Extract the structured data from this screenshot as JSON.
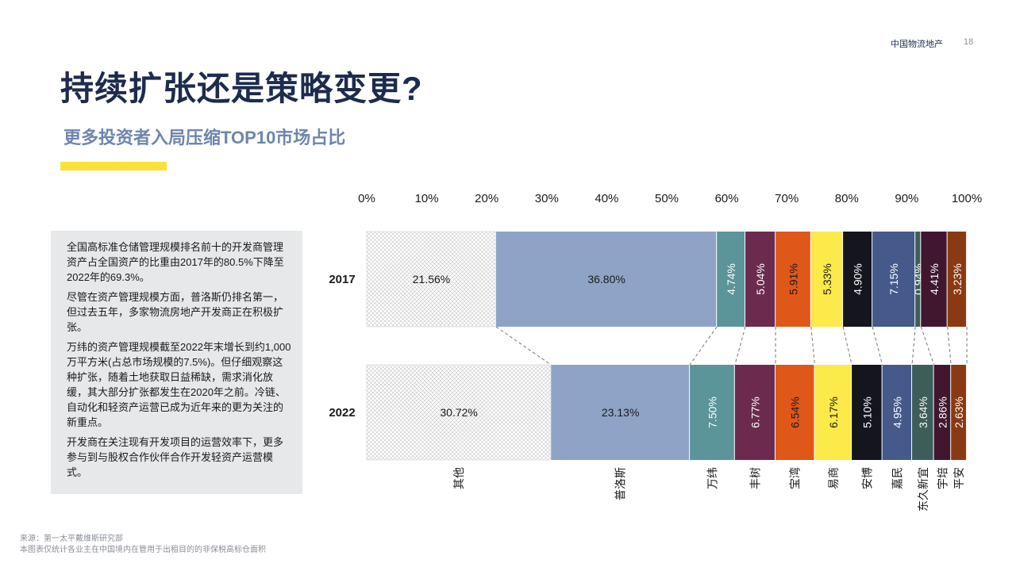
{
  "header": {
    "brand": "中国物流地产",
    "page_number": "18"
  },
  "title": "持续扩张还是策略变更?",
  "subtitle": "更多投资者入局压缩TOP10市场占比",
  "colors": {
    "title": "#1d2b4f",
    "subtitle": "#6d86ad",
    "accent": "#f7e23a",
    "textbox_bg": "#e6e8ea"
  },
  "textbox": {
    "paragraphs": [
      "全国高标准仓储管理规模排名前十的开发商管理资产占全国资产的比重由2017年的80.5%下降至2022年的69.3%。",
      "尽管在资产管理规模方面，普洛斯仍排名第一，但过去五年，多家物流房地产开发商正在积极扩张。",
      "万纬的资产管理规模截至2022年末增长到约1,000万平方米(占总市场规模的7.5%)。但仔细观察这种扩张，随着土地获取日益稀缺，需求消化放缓，其大部分扩张都发生在2020年之前。冷链、自动化和轻资产运营已成为近年来的更为关注的新重点。",
      "开发商在关注现有开发项目的运营效率下，更多参与到与股权合作伙伴合作开发轻资产运营模式。"
    ]
  },
  "source": {
    "line1": "来源：第一太平戴维斯研究部",
    "line2": "本图表仅统计各业主在中国境内在管用于出租目的的非保税高标仓面积"
  },
  "chart_data": {
    "type": "bar",
    "orientation": "horizontal",
    "stacked": "percent",
    "categories": [
      "2017",
      "2022"
    ],
    "xlim": [
      0,
      100
    ],
    "x_ticks": [
      "0%",
      "10%",
      "20%",
      "30%",
      "40%",
      "50%",
      "60%",
      "70%",
      "80%",
      "90%",
      "100%"
    ],
    "series": [
      {
        "name": "其他",
        "values": [
          21.56,
          30.72
        ],
        "labels": [
          "21.56%",
          "30.72%"
        ],
        "color": "#ffffff",
        "pattern": "crosshatch",
        "text_color": "#1a1a1a",
        "vertical": false
      },
      {
        "name": "普洛斯",
        "values": [
          36.8,
          23.13
        ],
        "labels": [
          "36.80%",
          "23.13%"
        ],
        "color": "#8fa3c7",
        "text_color": "#1a1a1a",
        "vertical": false
      },
      {
        "name": "万纬",
        "values": [
          4.74,
          7.5
        ],
        "labels": [
          "4.74%",
          "7.50%"
        ],
        "color": "#5b9499",
        "text_color": "#ffffff",
        "vertical": true
      },
      {
        "name": "丰树",
        "values": [
          5.04,
          6.77
        ],
        "labels": [
          "5.04%",
          "6.77%"
        ],
        "color": "#6b2a4e",
        "text_color": "#ffffff",
        "vertical": true
      },
      {
        "name": "宝湾",
        "values": [
          5.91,
          6.54
        ],
        "labels": [
          "5.91%",
          "6.54%"
        ],
        "color": "#e0571a",
        "text_color": "#1a1a1a",
        "vertical": true
      },
      {
        "name": "易商",
        "values": [
          5.33,
          6.17
        ],
        "labels": [
          "5.33%",
          "6.17%"
        ],
        "color": "#fce94a",
        "text_color": "#1a1a1a",
        "vertical": true
      },
      {
        "name": "安博",
        "values": [
          4.9,
          5.1
        ],
        "labels": [
          "4.90%",
          "5.10%"
        ],
        "color": "#15151e",
        "text_color": "#ffffff",
        "vertical": true
      },
      {
        "name": "嘉民",
        "values": [
          7.15,
          4.95
        ],
        "labels": [
          "7.15%",
          "4.95%"
        ],
        "color": "#45598a",
        "text_color": "#ffffff",
        "vertical": true
      },
      {
        "name": "东久新宜",
        "values": [
          0.94,
          3.64
        ],
        "labels": [
          "0.94%",
          "3.64%"
        ],
        "color": "#3d5d5a",
        "text_color": "#ffffff",
        "vertical": true
      },
      {
        "name": "宇培",
        "values": [
          4.41,
          2.86
        ],
        "labels": [
          "4.41%",
          "2.86%"
        ],
        "color": "#40172e",
        "text_color": "#ffffff",
        "vertical": true
      },
      {
        "name": "平安",
        "values": [
          3.23,
          2.63
        ],
        "labels": [
          "3.23%",
          "2.63%"
        ],
        "color": "#8a3a12",
        "text_color": "#ffffff",
        "vertical": true
      }
    ]
  }
}
